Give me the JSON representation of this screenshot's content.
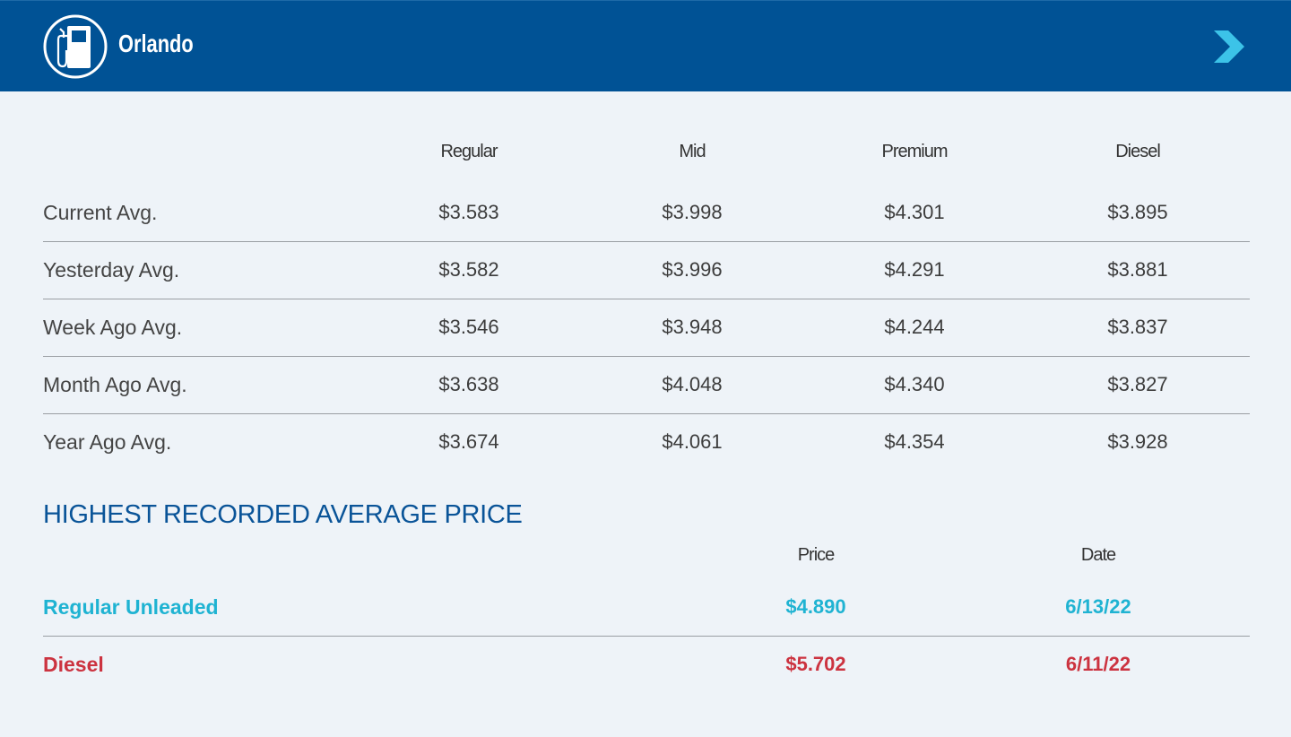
{
  "header": {
    "city": "Orlando",
    "icon": "gas-pump-icon",
    "chevron_icon": "chevron-right-icon",
    "background_color": "#005295",
    "chevron_color": "#3cc3e8"
  },
  "averages": {
    "columns": [
      "Regular",
      "Mid",
      "Premium",
      "Diesel"
    ],
    "rows": [
      {
        "label": "Current Avg.",
        "values": [
          "$3.583",
          "$3.998",
          "$4.301",
          "$3.895"
        ]
      },
      {
        "label": "Yesterday Avg.",
        "values": [
          "$3.582",
          "$3.996",
          "$4.291",
          "$3.881"
        ]
      },
      {
        "label": "Week Ago Avg.",
        "values": [
          "$3.546",
          "$3.948",
          "$4.244",
          "$3.837"
        ]
      },
      {
        "label": "Month Ago Avg.",
        "values": [
          "$3.638",
          "$4.048",
          "$4.340",
          "$3.827"
        ]
      },
      {
        "label": "Year Ago Avg.",
        "values": [
          "$3.674",
          "$4.061",
          "$4.354",
          "$3.928"
        ]
      }
    ]
  },
  "highest": {
    "title": "HIGHEST RECORDED AVERAGE PRICE",
    "columns": [
      "Price",
      "Date"
    ],
    "rows": [
      {
        "label": "Regular Unleaded",
        "price": "$4.890",
        "date": "6/13/22",
        "color": "#1fb3d2"
      },
      {
        "label": "Diesel",
        "price": "$5.702",
        "date": "6/11/22",
        "color": "#cc3340"
      }
    ]
  }
}
